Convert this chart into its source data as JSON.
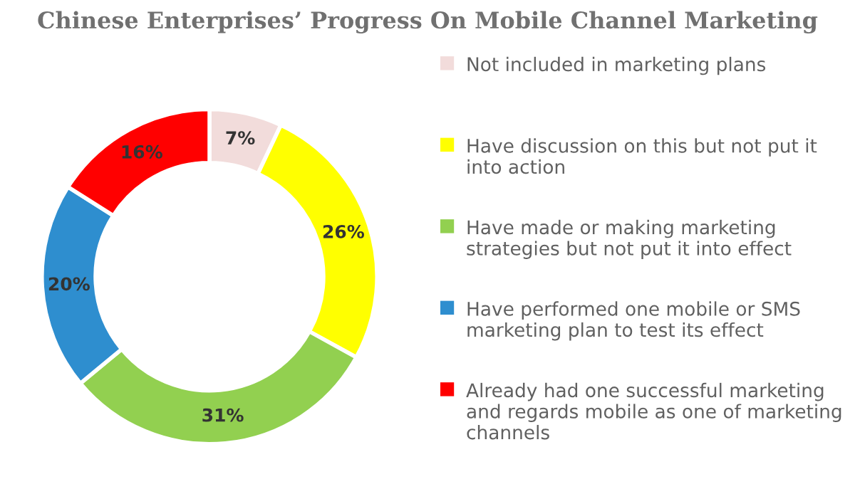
{
  "chart_data": {
    "type": "donut",
    "title": "Chinese Enterprises’ Progress On Mobile Channel Marketing",
    "categories": [
      "Not included in marketing plans",
      "Have discussion on this but not put it into action",
      "Have made or making marketing strategies but not put it into effect",
      "Have performed one mobile or SMS marketing plan to test its effect",
      "Already had one successful marketing and regards mobile as one of marketing channels"
    ],
    "values": [
      7,
      26,
      31,
      20,
      16
    ],
    "value_labels": [
      "7%",
      "26%",
      "31%",
      "20%",
      "16%"
    ],
    "colors": [
      "#f2dcdb",
      "#ffff00",
      "#92d050",
      "#2e8ecf",
      "#ff0000"
    ],
    "legend": "right"
  }
}
